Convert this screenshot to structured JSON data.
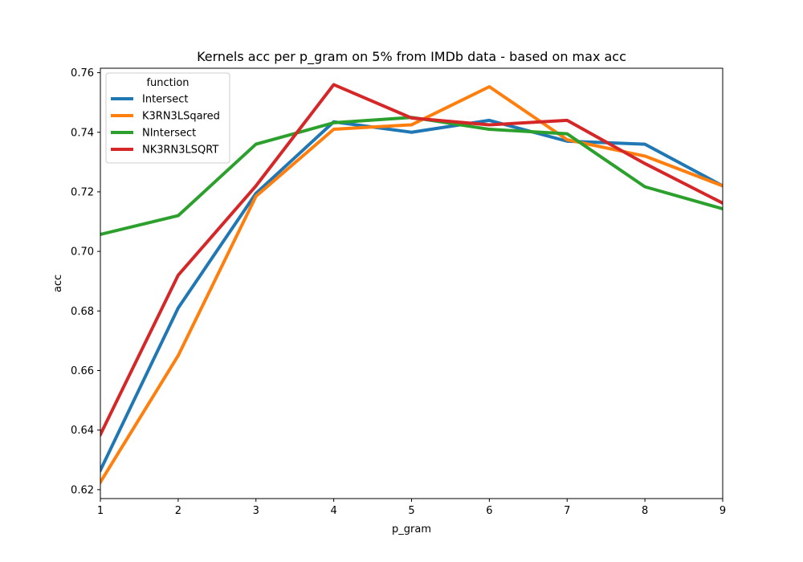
{
  "chart_data": {
    "type": "line",
    "title": "Kernels acc per p_gram on 5% from IMDb data - based on max acc",
    "xlabel": "p_gram",
    "ylabel": "acc",
    "x": [
      1,
      2,
      3,
      4,
      5,
      6,
      7,
      8,
      9
    ],
    "xlim": [
      1,
      9
    ],
    "ylim": [
      0.617,
      0.7615
    ],
    "x_ticks": [
      1,
      2,
      3,
      4,
      5,
      6,
      7,
      8,
      9
    ],
    "y_ticks": [
      "0.62",
      "0.64",
      "0.66",
      "0.68",
      "0.70",
      "0.72",
      "0.74",
      "0.76"
    ],
    "grid": false,
    "legend": {
      "title": "function",
      "placement": "upper-left"
    },
    "series": [
      {
        "name": "Intersect",
        "color": "#1f77b4",
        "values": [
          0.6265,
          0.681,
          0.7195,
          0.7435,
          0.74,
          0.744,
          0.737,
          0.736,
          0.722
        ]
      },
      {
        "name": "K3RN3LSqared",
        "color": "#ff7f0e",
        "values": [
          0.6225,
          0.665,
          0.7185,
          0.741,
          0.7425,
          0.7553,
          0.7375,
          0.732,
          0.722
        ]
      },
      {
        "name": "NIntersect",
        "color": "#2ca02c",
        "values": [
          0.7057,
          0.712,
          0.736,
          0.7432,
          0.745,
          0.741,
          0.7395,
          0.7217,
          0.7143
        ]
      },
      {
        "name": "NK3RN3LSQRT",
        "color": "#d62728",
        "values": [
          0.6385,
          0.692,
          0.722,
          0.756,
          0.7448,
          0.7425,
          0.744,
          0.7295,
          0.7162
        ]
      }
    ]
  }
}
